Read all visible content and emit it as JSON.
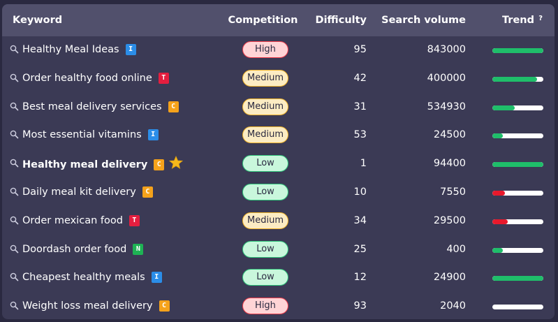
{
  "header": {
    "keyword": "Keyword",
    "competition": "Competition",
    "difficulty": "Difficulty",
    "volume": "Search volume",
    "trend": "Trend",
    "help": "?"
  },
  "colors": {
    "intent_I": "#2b8de8",
    "intent_T": "#e41e3f",
    "intent_C": "#f5a21b",
    "intent_N": "#1eb254",
    "high_bg": "#ffd4d6",
    "high_border": "#ef3b4a",
    "medium_bg": "#fcecc3",
    "medium_border": "#f1b42a",
    "low_bg": "#c9f7dc",
    "low_border": "#2fc47a",
    "trend_green": "#1fbe6a",
    "trend_red": "#e8192c"
  },
  "rows": [
    {
      "keyword": "Healthy Meal Ideas",
      "intent": "I",
      "competition": "High",
      "difficulty": "95",
      "volume": "843000",
      "trend": 1.0,
      "trend_color": "green",
      "bold": false,
      "star": false
    },
    {
      "keyword": "Order healthy food online",
      "intent": "T",
      "competition": "Medium",
      "difficulty": "42",
      "volume": "400000",
      "trend": 0.88,
      "trend_color": "green",
      "bold": false,
      "star": false
    },
    {
      "keyword": "Best meal delivery services",
      "intent": "C",
      "competition": "Medium",
      "difficulty": "31",
      "volume": "534930",
      "trend": 0.44,
      "trend_color": "green",
      "bold": false,
      "star": false
    },
    {
      "keyword": "Most essential vitamins",
      "intent": "I",
      "competition": "Medium",
      "difficulty": "53",
      "volume": "24500",
      "trend": 0.2,
      "trend_color": "green",
      "bold": false,
      "star": false
    },
    {
      "keyword": "Healthy meal delivery",
      "intent": "C",
      "competition": "Low",
      "difficulty": "1",
      "volume": "94400",
      "trend": 1.0,
      "trend_color": "green",
      "bold": true,
      "star": true
    },
    {
      "keyword": "Daily meal kit delivery",
      "intent": "C",
      "competition": "Low",
      "difficulty": "10",
      "volume": "7550",
      "trend": 0.24,
      "trend_color": "red",
      "bold": false,
      "star": false
    },
    {
      "keyword": "Order mexican food",
      "intent": "T",
      "competition": "Medium",
      "difficulty": "34",
      "volume": "29500",
      "trend": 0.3,
      "trend_color": "red",
      "bold": false,
      "star": false
    },
    {
      "keyword": "Doordash order food",
      "intent": "N",
      "competition": "Low",
      "difficulty": "25",
      "volume": "400",
      "trend": 0.2,
      "trend_color": "green",
      "bold": false,
      "star": false
    },
    {
      "keyword": "Cheapest healthy meals",
      "intent": "I",
      "competition": "Low",
      "difficulty": "12",
      "volume": "24900",
      "trend": 1.0,
      "trend_color": "green",
      "bold": false,
      "star": false
    },
    {
      "keyword": "Weight loss meal delivery",
      "intent": "C",
      "competition": "High",
      "difficulty": "93",
      "volume": "2040",
      "trend": 0.0,
      "trend_color": "green",
      "bold": false,
      "star": false
    }
  ]
}
